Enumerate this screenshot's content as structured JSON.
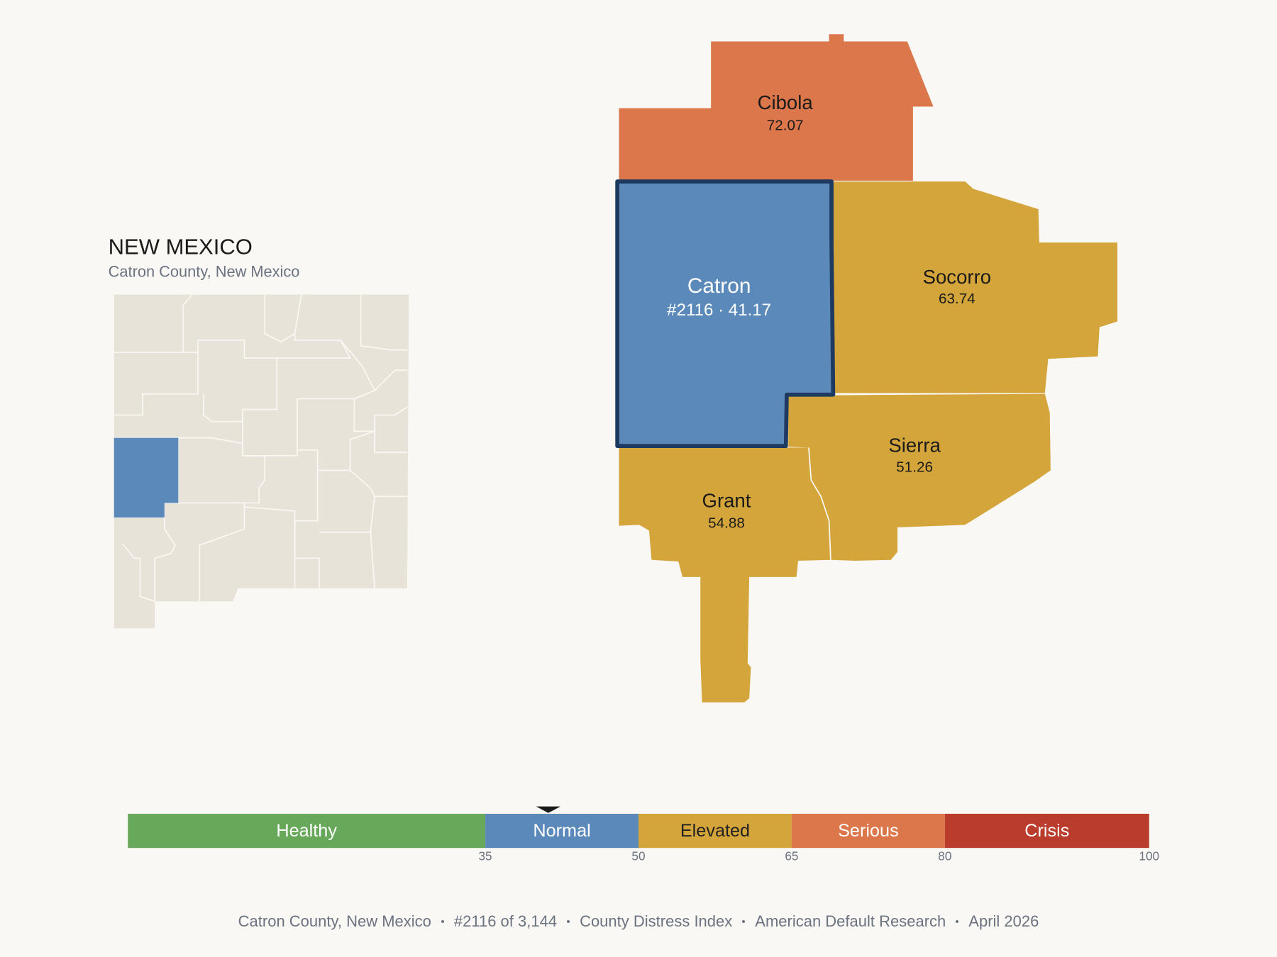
{
  "header": {
    "title": "NEW MEXICO",
    "subtitle": "Catron County, New Mexico"
  },
  "counties": [
    {
      "name": "Cibola",
      "value": 72.07
    },
    {
      "name": "Catron",
      "value": 41.17,
      "value_label": "#2116 · 41.17",
      "highlight": true
    },
    {
      "name": "Socorro",
      "value": 63.74
    },
    {
      "name": "Sierra",
      "value": 51.26
    },
    {
      "name": "Grant",
      "value": 54.88
    }
  ],
  "scale": {
    "xlim": [
      0,
      100
    ],
    "ticks": [
      35,
      50,
      65,
      80,
      100
    ],
    "bands": [
      {
        "label": "Healthy",
        "color": "#67a85a",
        "text_color": "#ffffff"
      },
      {
        "label": "Normal",
        "color": "#5b8aba",
        "text_color": "#ffffff"
      },
      {
        "label": "Elevated",
        "color": "#d4a53a",
        "text_color": "#222222"
      },
      {
        "label": "Serious",
        "color": "#db774a",
        "text_color": "#ffffff"
      },
      {
        "label": "Crisis",
        "color": "#b93c2c",
        "text_color": "#ffffff"
      }
    ]
  },
  "footer": [
    "Catron County, New Mexico",
    "#2116 of 3,144",
    "County Distress Index",
    "American Default Research",
    "April 2026"
  ]
}
